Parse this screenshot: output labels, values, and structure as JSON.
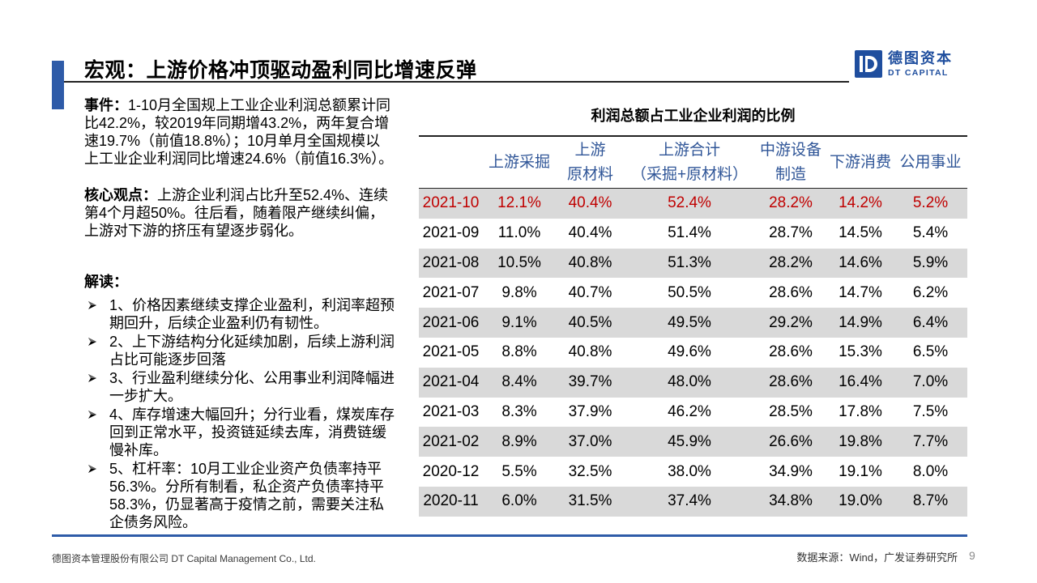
{
  "slide": {
    "title": "宏观：上游价格冲顶驱动盈利同比增速反弹",
    "page_number": "9"
  },
  "brand": {
    "logo_icon": "dt-capital-logo-icon",
    "name_cn": "德图资本",
    "name_en": "DT CAPITAL"
  },
  "left_panel": {
    "event": {
      "label": "事件：",
      "lines": [
        "1-10月全国规上工业企业利润总额累计同",
        "比42.2%，较2019年同期增43.2%，两年复合增",
        "速19.7%（前值18.8%）；10月单月全国规模以",
        "上工业企业利润同比增速24.6%（前值16.3%）。"
      ]
    },
    "core_view": {
      "label": "核心观点：",
      "lines": [
        "上游企业利润占比升至52.4%、连续",
        "第4个月超50%。往后看，随着限产继续纠偏，",
        "上游对下游的挤压有望逐步弱化。"
      ]
    },
    "interpretation": {
      "label": "解读：",
      "bullet_icon": "arrow-bullet-icon",
      "bullets": [
        {
          "lines": [
            "1、价格因素继续支撑企业盈利，利润率超预",
            "期回升，后续企业盈利仍有韧性。"
          ]
        },
        {
          "lines": [
            "2、上下游结构分化延续加剧，后续上游利润",
            "占比可能逐步回落"
          ]
        },
        {
          "lines": [
            "3、行业盈利继续分化、公用事业利润降幅进",
            "一步扩大。"
          ]
        },
        {
          "lines": [
            "4、库存增速大幅回升；分行业看，煤炭库存",
            "回到正常水平，投资链延续去库，消费链缓",
            "慢补库。"
          ]
        },
        {
          "lines": [
            "5、杠杆率：10月工业企业资产负债率持平",
            "56.3%。分所有制看，私企资产负债率持平",
            "58.3%，仍显著高于疫情之前，需要关注私",
            "企债务风险。"
          ]
        }
      ]
    }
  },
  "table": {
    "title": "利润总额占工业企业利润的比例",
    "columns": [
      {
        "lines": [
          "上游采掘"
        ]
      },
      {
        "lines": [
          "上游",
          "原材料"
        ]
      },
      {
        "lines": [
          "上游合计",
          "（采掘+原材料）"
        ]
      },
      {
        "lines": [
          "中游设备",
          "制造"
        ]
      },
      {
        "lines": [
          "下游消费"
        ]
      },
      {
        "lines": [
          "公用事业"
        ]
      }
    ],
    "rows": [
      {
        "date": "2021-10",
        "highlight": true,
        "values": [
          "12.1%",
          "40.4%",
          "52.4%",
          "28.2%",
          "14.2%",
          "5.2%"
        ]
      },
      {
        "date": "2021-09",
        "values": [
          "11.0%",
          "40.4%",
          "51.4%",
          "28.7%",
          "14.5%",
          "5.4%"
        ]
      },
      {
        "date": "2021-08",
        "values": [
          "10.5%",
          "40.8%",
          "51.3%",
          "28.2%",
          "14.6%",
          "5.9%"
        ]
      },
      {
        "date": "2021-07",
        "values": [
          "9.8%",
          "40.7%",
          "50.5%",
          "28.6%",
          "14.7%",
          "6.2%"
        ]
      },
      {
        "date": "2021-06",
        "values": [
          "9.1%",
          "40.5%",
          "49.5%",
          "29.2%",
          "14.9%",
          "6.4%"
        ]
      },
      {
        "date": "2021-05",
        "values": [
          "8.8%",
          "40.8%",
          "49.6%",
          "28.6%",
          "15.3%",
          "6.5%"
        ]
      },
      {
        "date": "2021-04",
        "values": [
          "8.4%",
          "39.7%",
          "48.0%",
          "28.6%",
          "16.4%",
          "7.0%"
        ]
      },
      {
        "date": "2021-03",
        "values": [
          "8.3%",
          "37.9%",
          "46.2%",
          "28.5%",
          "17.8%",
          "7.5%"
        ]
      },
      {
        "date": "2021-02",
        "values": [
          "8.9%",
          "37.0%",
          "45.9%",
          "26.6%",
          "19.8%",
          "7.7%"
        ]
      },
      {
        "date": "2020-12",
        "values": [
          "5.5%",
          "32.5%",
          "38.0%",
          "34.9%",
          "19.1%",
          "8.0%"
        ]
      },
      {
        "date": "2020-11",
        "values": [
          "6.0%",
          "31.5%",
          "37.4%",
          "34.8%",
          "19.0%",
          "8.7%"
        ]
      }
    ]
  },
  "footer": {
    "company": "德图资本管理股份有限公司 DT Capital Management Co., Ltd.",
    "source": "数据来源：Wind，广发证券研究所"
  },
  "colors": {
    "accent": "#2E5BA8",
    "logo": "#1F4E9E",
    "header_text": "#2F5597",
    "highlight_text": "#C00000",
    "stripe": "#D9D9D9",
    "rule": "#222222"
  }
}
